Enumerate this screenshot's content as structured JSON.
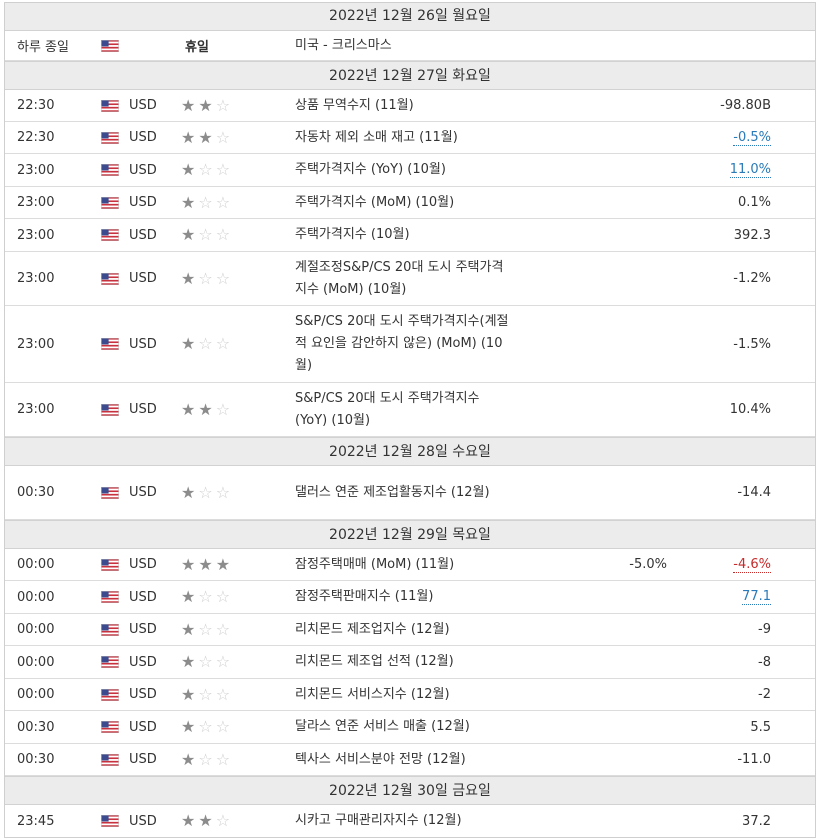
{
  "days": [
    {
      "header": "2022년 12월 26일 월요일",
      "holiday": {
        "time": "하루 종일",
        "label": "휴일",
        "event": "미국 - 크리스마스"
      },
      "events": []
    },
    {
      "header": "2022년 12월 27일 화요일",
      "events": [
        {
          "time": "22:30",
          "currency": "USD",
          "importance": 2,
          "name": "상품 무역수지 (11월)",
          "previous": "",
          "actual": "-98.80B",
          "actual_style": ""
        },
        {
          "time": "22:30",
          "currency": "USD",
          "importance": 2,
          "name": "자동차 제외 소매 재고 (11월)",
          "previous": "",
          "actual": "-0.5%",
          "actual_style": "blue"
        },
        {
          "time": "23:00",
          "currency": "USD",
          "importance": 1,
          "name": "주택가격지수 (YoY) (10월)",
          "previous": "",
          "actual": "11.0%",
          "actual_style": "blue"
        },
        {
          "time": "23:00",
          "currency": "USD",
          "importance": 1,
          "name": "주택가격지수 (MoM) (10월)",
          "previous": "",
          "actual": "0.1%",
          "actual_style": ""
        },
        {
          "time": "23:00",
          "currency": "USD",
          "importance": 1,
          "name": "주택가격지수 (10월)",
          "previous": "",
          "actual": "392.3",
          "actual_style": ""
        },
        {
          "time": "23:00",
          "currency": "USD",
          "importance": 1,
          "name": "계절조정S&P/CS 20대 도시 주택가격지수 (MoM) (10월)",
          "previous": "",
          "actual": "-1.2%",
          "actual_style": ""
        },
        {
          "time": "23:00",
          "currency": "USD",
          "importance": 1,
          "name": "S&P/CS 20대 도시 주택가격지수(계절적 요인을 감안하지 않은) (MoM) (10월)",
          "previous": "",
          "actual": "-1.5%",
          "actual_style": ""
        },
        {
          "time": "23:00",
          "currency": "USD",
          "importance": 2,
          "name": "S&P/CS 20대 도시 주택가격지수 (YoY) (10월)",
          "previous": "",
          "actual": "10.4%",
          "actual_style": ""
        }
      ]
    },
    {
      "header": "2022년 12월 28일 수요일",
      "events": [
        {
          "time": "00:30",
          "currency": "USD",
          "importance": 1,
          "name": "댈러스 연준 제조업활동지수 (12월)",
          "previous": "",
          "actual": "-14.4",
          "actual_style": ""
        }
      ]
    },
    {
      "header": "2022년 12월 29일 목요일",
      "events": [
        {
          "time": "00:00",
          "currency": "USD",
          "importance": 3,
          "name": "잠정주택매매 (MoM) (11월)",
          "previous": "-5.0%",
          "actual": "-4.6%",
          "actual_style": "red"
        },
        {
          "time": "00:00",
          "currency": "USD",
          "importance": 1,
          "name": "잠정주택판매지수 (11월)",
          "previous": "",
          "actual": "77.1",
          "actual_style": "blue"
        },
        {
          "time": "00:00",
          "currency": "USD",
          "importance": 1,
          "name": "리치몬드 제조업지수 (12월)",
          "previous": "",
          "actual": "-9",
          "actual_style": ""
        },
        {
          "time": "00:00",
          "currency": "USD",
          "importance": 1,
          "name": "리치몬드 제조업 선적 (12월)",
          "previous": "",
          "actual": "-8",
          "actual_style": ""
        },
        {
          "time": "00:00",
          "currency": "USD",
          "importance": 1,
          "name": "리치몬드 서비스지수 (12월)",
          "previous": "",
          "actual": "-2",
          "actual_style": ""
        },
        {
          "time": "00:30",
          "currency": "USD",
          "importance": 1,
          "name": "달라스 연준 서비스 매출 (12월)",
          "previous": "",
          "actual": "5.5",
          "actual_style": ""
        },
        {
          "time": "00:30",
          "currency": "USD",
          "importance": 1,
          "name": "텍사스 서비스분야 전망 (12월)",
          "previous": "",
          "actual": "-11.0",
          "actual_style": ""
        }
      ]
    },
    {
      "header": "2022년 12월 30일 금요일",
      "events": [
        {
          "time": "23:45",
          "currency": "USD",
          "importance": 2,
          "name": "시카고 구매관리자지수 (12월)",
          "previous": "",
          "actual": "37.2",
          "actual_style": ""
        }
      ]
    }
  ],
  "flag_icon": "us-flag-icon",
  "colors": {
    "header_bg": "#ececec",
    "border": "#dcdcdc",
    "star_on": "#8c8c8c",
    "star_off": "#cfcfcf",
    "blue": "#2a7ab8",
    "red": "#c62b2b"
  }
}
